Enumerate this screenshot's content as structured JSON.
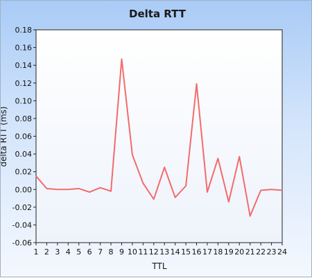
{
  "chart_data": {
    "type": "line",
    "title": "Delta RTT",
    "xlabel": "TTL",
    "ylabel": "delta RTT (ms)",
    "x": [
      1,
      2,
      3,
      4,
      5,
      6,
      7,
      8,
      9,
      10,
      11,
      12,
      13,
      14,
      15,
      16,
      17,
      18,
      19,
      20,
      21,
      22,
      23,
      24
    ],
    "x_tick_labels": [
      "1",
      "2",
      "3",
      "4",
      "5",
      "6",
      "7",
      "8",
      "9",
      "10",
      "11",
      "12",
      "13",
      "14",
      "15",
      "16",
      "17",
      "18",
      "19",
      "20",
      "21",
      "22",
      "23",
      "24"
    ],
    "series": [
      {
        "values": [
          0.015,
          0.001,
          0.0,
          0.0,
          0.001,
          -0.003,
          0.002,
          -0.002,
          0.147,
          0.039,
          0.007,
          -0.011,
          0.025,
          -0.009,
          0.004,
          0.119,
          -0.003,
          0.035,
          -0.014,
          0.037,
          -0.03,
          -0.001,
          0.0,
          -0.001
        ],
        "color": "#f26b6b"
      }
    ],
    "xlim": [
      1,
      24
    ],
    "ylim": [
      -0.06,
      0.18
    ],
    "y_ticks": [
      -0.06,
      -0.04,
      -0.02,
      0.0,
      0.02,
      0.04,
      0.06,
      0.08,
      0.1,
      0.12,
      0.14,
      0.16,
      0.18
    ],
    "y_tick_labels": [
      "-0.06",
      "-0.04",
      "-0.02",
      "0.00",
      "0.02",
      "0.04",
      "0.06",
      "0.08",
      "0.10",
      "0.12",
      "0.14",
      "0.16",
      "0.18"
    ],
    "grid": false,
    "legend": "none"
  }
}
